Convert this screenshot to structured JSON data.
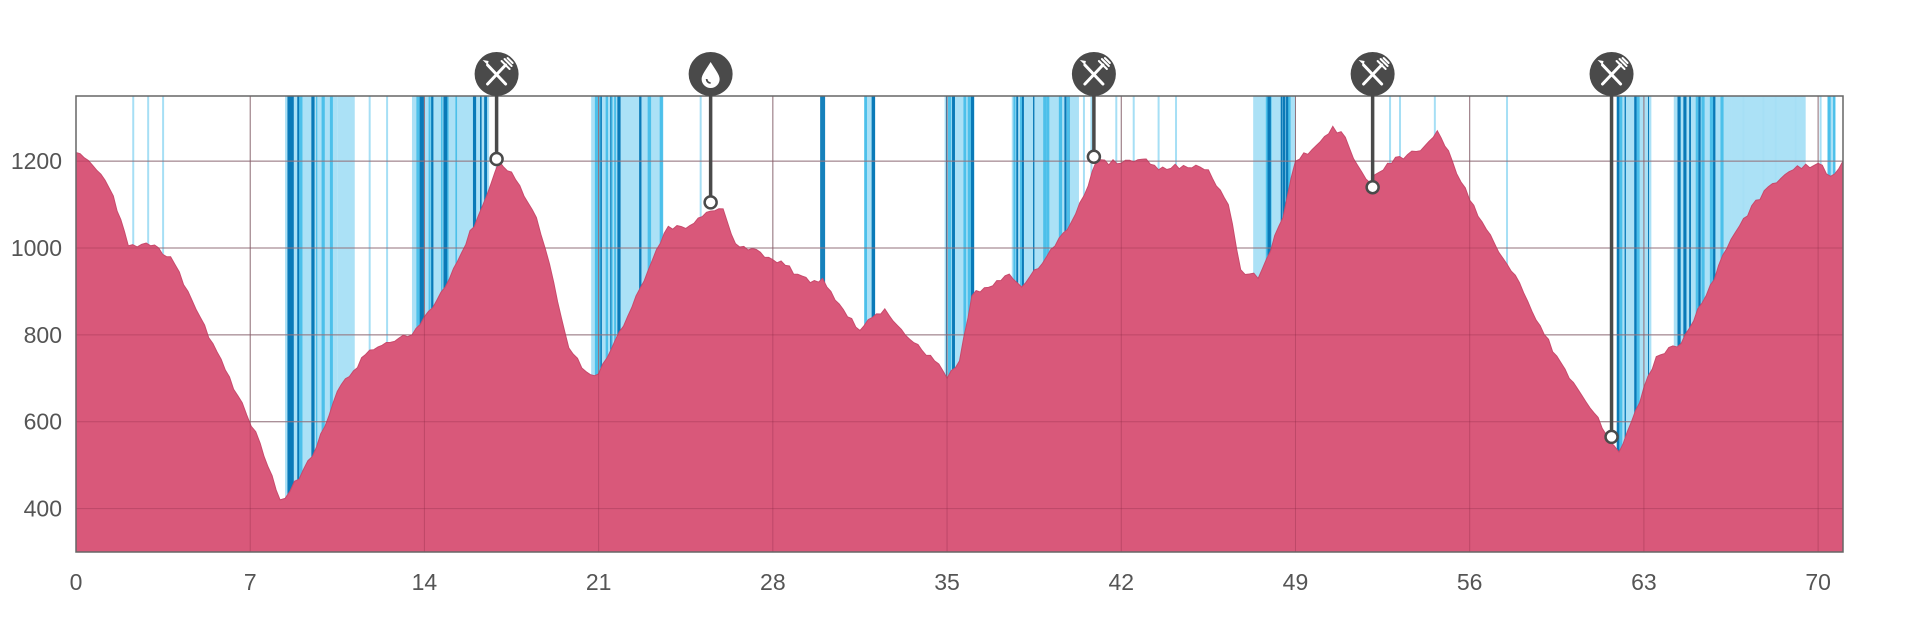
{
  "chart_data": {
    "type": "area",
    "title": "",
    "xlabel": "",
    "ylabel": "",
    "xlim": [
      0,
      71
    ],
    "ylim": [
      300,
      1350
    ],
    "x_ticks": [
      "0",
      "7",
      "14",
      "21",
      "28",
      "35",
      "42",
      "49",
      "56",
      "63",
      "70"
    ],
    "y_ticks": [
      "400",
      "600",
      "800",
      "1000",
      "1200"
    ],
    "grid": true,
    "colors": {
      "area": "#d9587a",
      "area_stroke": "#c84a6c",
      "shade_light": "#a6dff5",
      "shade_mid": "#4cc0ea",
      "shade_dark": "#0a7ab8",
      "grid": "#999999",
      "marker": "#4a4a4a"
    },
    "series": [
      {
        "values": [
          [
            0,
            1220
          ],
          [
            1,
            1170
          ],
          [
            1.5,
            1120
          ],
          [
            2.1,
            1005
          ],
          [
            3,
            1005
          ],
          [
            3.8,
            980
          ],
          [
            4.5,
            900
          ],
          [
            5.5,
            780
          ],
          [
            6.5,
            660
          ],
          [
            7.4,
            550
          ],
          [
            8.2,
            420
          ],
          [
            8.6,
            440
          ],
          [
            9.5,
            520
          ],
          [
            10.5,
            670
          ],
          [
            11.8,
            765
          ],
          [
            12.8,
            785
          ],
          [
            13.5,
            800
          ],
          [
            14.5,
            880
          ],
          [
            15.5,
            990
          ],
          [
            16.5,
            1120
          ],
          [
            17,
            1200
          ],
          [
            17.5,
            1175
          ],
          [
            18.5,
            1070
          ],
          [
            19.2,
            920
          ],
          [
            19.8,
            770
          ],
          [
            20.5,
            715
          ],
          [
            21,
            710
          ],
          [
            22,
            820
          ],
          [
            23,
            950
          ],
          [
            23.8,
            1050
          ],
          [
            24.5,
            1045
          ],
          [
            25.5,
            1085
          ],
          [
            26,
            1090
          ],
          [
            26.5,
            1010
          ],
          [
            27.5,
            990
          ],
          [
            28.5,
            960
          ],
          [
            29.5,
            920
          ],
          [
            30,
            930
          ],
          [
            30.5,
            880
          ],
          [
            31.5,
            810
          ],
          [
            32,
            840
          ],
          [
            32.5,
            860
          ],
          [
            33.5,
            790
          ],
          [
            34.5,
            740
          ],
          [
            35,
            700
          ],
          [
            35.5,
            740
          ],
          [
            36,
            890
          ],
          [
            37,
            925
          ],
          [
            37.5,
            940
          ],
          [
            38,
            910
          ],
          [
            39,
            980
          ],
          [
            40,
            1060
          ],
          [
            40.5,
            1120
          ],
          [
            41,
            1200
          ],
          [
            42,
            1195
          ],
          [
            43,
            1205
          ],
          [
            43.5,
            1180
          ],
          [
            44.5,
            1190
          ],
          [
            45.5,
            1180
          ],
          [
            46.3,
            1100
          ],
          [
            46.8,
            950
          ],
          [
            47.5,
            930
          ],
          [
            48.5,
            1070
          ],
          [
            49,
            1200
          ],
          [
            50,
            1245
          ],
          [
            50.5,
            1280
          ],
          [
            51,
            1255
          ],
          [
            51.5,
            1190
          ],
          [
            52,
            1150
          ],
          [
            52.7,
            1195
          ],
          [
            53.5,
            1215
          ],
          [
            54.2,
            1235
          ],
          [
            54.7,
            1270
          ],
          [
            55.3,
            1200
          ],
          [
            56,
            1110
          ],
          [
            57,
            1010
          ],
          [
            58,
            920
          ],
          [
            59,
            800
          ],
          [
            60,
            700
          ],
          [
            61,
            620
          ],
          [
            61.8,
            545
          ],
          [
            62,
            530
          ],
          [
            62.5,
            600
          ],
          [
            63.5,
            750
          ],
          [
            64.5,
            780
          ],
          [
            65.5,
            890
          ],
          [
            66.5,
            1020
          ],
          [
            67.5,
            1110
          ],
          [
            68.5,
            1160
          ],
          [
            69,
            1180
          ],
          [
            70,
            1195
          ],
          [
            70.5,
            1165
          ],
          [
            71,
            1200
          ]
        ]
      }
    ],
    "shaded_bands": [
      {
        "from": 8.4,
        "to": 10.5,
        "shade": "mixed"
      },
      {
        "from": 10.5,
        "to": 11.2,
        "shade": "light"
      },
      {
        "from": 13.5,
        "to": 16.6,
        "shade": "mixed"
      },
      {
        "from": 20.7,
        "to": 23.6,
        "shade": "mixed"
      },
      {
        "from": 29.9,
        "to": 30.1,
        "shade": "dark"
      },
      {
        "from": 31.7,
        "to": 32.1,
        "shade": "mixed"
      },
      {
        "from": 34.9,
        "to": 36.1,
        "shade": "mixed"
      },
      {
        "from": 37.6,
        "to": 40.3,
        "shade": "mixed"
      },
      {
        "from": 47.3,
        "to": 49.0,
        "shade": "mixed"
      },
      {
        "from": 61.9,
        "to": 63.3,
        "shade": "mixed"
      },
      {
        "from": 64.2,
        "to": 66.5,
        "shade": "mixed"
      },
      {
        "from": 66.5,
        "to": 69.5,
        "shade": "light"
      },
      {
        "from": 70.4,
        "to": 70.7,
        "shade": "mixed"
      }
    ],
    "thin_lines": [
      2.3,
      2.9,
      3.5,
      11.8,
      12.5,
      16.9,
      25.1,
      40.5,
      40.8,
      41.8,
      42.5,
      43.5,
      44.2,
      52.8,
      53.2,
      54.6,
      57.5,
      67,
      67.8,
      68.3,
      69.1,
      70.1
    ],
    "markers": [
      {
        "x": 16.9,
        "y": 1205,
        "icon": "utensils-icon"
      },
      {
        "x": 25.5,
        "y": 1105,
        "icon": "water-drop-icon"
      },
      {
        "x": 40.9,
        "y": 1210,
        "icon": "utensils-icon"
      },
      {
        "x": 52.1,
        "y": 1140,
        "icon": "utensils-icon"
      },
      {
        "x": 61.7,
        "y": 565,
        "icon": "utensils-icon"
      }
    ]
  }
}
